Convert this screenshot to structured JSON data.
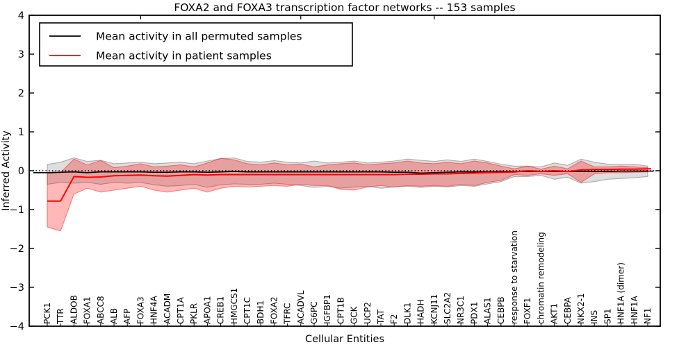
{
  "title": "FOXA2 and FOXA3 transcription factor networks -- 153 samples",
  "axes": {
    "xlabel": "Cellular Entities",
    "ylabel": "Inferred Activity",
    "ytick_labels": [
      "4",
      "3",
      "2",
      "1",
      "0",
      "−1",
      "−2",
      "−3",
      "−4"
    ],
    "ytick_values": [
      4,
      3,
      2,
      1,
      0,
      -1,
      -2,
      -3,
      -4
    ]
  },
  "legend": {
    "items": [
      {
        "label": "Mean activity in all permuted samples",
        "color": "#000000"
      },
      {
        "label": "Mean activity in patient samples",
        "color": "#ff0000"
      }
    ]
  },
  "chart_data": {
    "type": "line",
    "title": "FOXA2 and FOXA3 transcription factor networks -- 153 samples",
    "xlabel": "Cellular Entities",
    "ylabel": "Inferred Activity",
    "ylim": [
      -4,
      4
    ],
    "grid": false,
    "legend_position": "upper left",
    "zero_reference_line": "dotted black at y=0",
    "categories": [
      "PCK1",
      "TTR",
      "ALDOB",
      "FOXA1",
      "ABCC8",
      "ALB",
      "AFP",
      "FOXA3",
      "HNF4A",
      "ACADM",
      "CPT1A",
      "PKLR",
      "APOA1",
      "CREB1",
      "HMGCS1",
      "CPT1C",
      "BDH1",
      "FOXA2",
      "TFRC",
      "ACADVL",
      "G6PC",
      "IGFBP1",
      "CPT1B",
      "GCK",
      "UCP2",
      "TAT",
      "F2",
      "DLK1",
      "HADH",
      "KCNJ11",
      "SLC2A2",
      "NR3C1",
      "PDX1",
      "ALAS1",
      "CEBPB",
      "response to starvation",
      "FOXF1",
      "chromatin remodeling",
      "AKT1",
      "CEBPA",
      "NKX2-1",
      "INS",
      "SP1",
      "HNF1A (dimer)",
      "HNF1A",
      "NF1"
    ],
    "series": [
      {
        "name": "Mean activity in all permuted samples",
        "color": "#000000",
        "values": [
          -0.05,
          -0.04,
          -0.03,
          -0.05,
          -0.03,
          -0.03,
          -0.03,
          -0.03,
          -0.04,
          -0.04,
          -0.03,
          -0.03,
          -0.04,
          -0.03,
          -0.02,
          -0.03,
          -0.03,
          -0.03,
          -0.03,
          -0.03,
          -0.03,
          -0.03,
          -0.03,
          -0.03,
          -0.03,
          -0.03,
          -0.04,
          -0.04,
          -0.06,
          -0.05,
          -0.04,
          -0.03,
          -0.03,
          -0.03,
          -0.02,
          -0.02,
          -0.02,
          -0.02,
          -0.02,
          -0.02,
          -0.02,
          -0.02,
          -0.02,
          -0.01,
          -0.01,
          -0.01
        ]
      },
      {
        "name": "Mean activity in patient samples",
        "color": "#ff0000",
        "values": [
          -0.78,
          -0.78,
          -0.15,
          -0.17,
          -0.16,
          -0.13,
          -0.12,
          -0.11,
          -0.13,
          -0.14,
          -0.12,
          -0.1,
          -0.11,
          -0.1,
          -0.1,
          -0.1,
          -0.1,
          -0.1,
          -0.1,
          -0.1,
          -0.1,
          -0.1,
          -0.1,
          -0.1,
          -0.1,
          -0.1,
          -0.1,
          -0.09,
          -0.09,
          -0.08,
          -0.08,
          -0.07,
          -0.06,
          -0.05,
          -0.04,
          -0.03,
          0.0,
          -0.02,
          0.0,
          -0.02,
          0.02,
          0.03,
          0.03,
          0.04,
          0.04,
          0.05
        ]
      }
    ],
    "bands": [
      {
        "name": "permuted samples envelope",
        "color": "#000000",
        "fill_alpha": 0.13,
        "upper": [
          0.16,
          0.22,
          0.33,
          0.24,
          0.27,
          0.18,
          0.2,
          0.22,
          0.18,
          0.2,
          0.22,
          0.18,
          0.25,
          0.31,
          0.33,
          0.24,
          0.22,
          0.26,
          0.22,
          0.2,
          0.25,
          0.2,
          0.22,
          0.25,
          0.2,
          0.22,
          0.25,
          0.3,
          0.27,
          0.24,
          0.28,
          0.24,
          0.3,
          0.24,
          0.17,
          0.12,
          0.12,
          0.1,
          0.2,
          0.14,
          0.3,
          0.22,
          0.17,
          0.17,
          0.17,
          0.12
        ],
        "lower": [
          -0.35,
          -0.3,
          -0.32,
          -0.3,
          -0.35,
          -0.3,
          -0.32,
          -0.3,
          -0.36,
          -0.4,
          -0.38,
          -0.35,
          -0.43,
          -0.36,
          -0.34,
          -0.35,
          -0.35,
          -0.32,
          -0.35,
          -0.38,
          -0.43,
          -0.4,
          -0.45,
          -0.42,
          -0.4,
          -0.45,
          -0.42,
          -0.4,
          -0.43,
          -0.4,
          -0.42,
          -0.38,
          -0.4,
          -0.34,
          -0.28,
          -0.15,
          -0.15,
          -0.12,
          -0.22,
          -0.17,
          -0.32,
          -0.28,
          -0.22,
          -0.2,
          -0.18,
          -0.15
        ]
      },
      {
        "name": "patient samples envelope",
        "color": "#ff0000",
        "fill_alpha": 0.28,
        "upper": [
          -0.08,
          -0.05,
          0.3,
          0.15,
          0.26,
          0.08,
          0.12,
          0.18,
          0.1,
          0.12,
          0.15,
          0.1,
          0.2,
          0.32,
          0.28,
          0.18,
          0.15,
          0.2,
          0.15,
          0.17,
          0.1,
          0.15,
          0.18,
          0.2,
          0.15,
          0.18,
          0.2,
          0.25,
          0.2,
          0.18,
          0.22,
          0.18,
          0.25,
          0.2,
          0.12,
          0.05,
          0.12,
          0.04,
          0.12,
          0.05,
          0.25,
          0.1,
          0.1,
          0.12,
          0.1,
          0.08
        ],
        "lower": [
          -1.45,
          -1.55,
          -0.6,
          -0.45,
          -0.55,
          -0.5,
          -0.45,
          -0.4,
          -0.5,
          -0.55,
          -0.5,
          -0.45,
          -0.55,
          -0.45,
          -0.4,
          -0.42,
          -0.4,
          -0.38,
          -0.4,
          -0.35,
          -0.38,
          -0.38,
          -0.48,
          -0.5,
          -0.42,
          -0.38,
          -0.42,
          -0.38,
          -0.4,
          -0.38,
          -0.4,
          -0.35,
          -0.38,
          -0.3,
          -0.25,
          -0.1,
          -0.12,
          -0.08,
          -0.12,
          -0.08,
          -0.3,
          -0.08,
          -0.05,
          -0.05,
          -0.04,
          -0.03
        ]
      }
    ]
  }
}
